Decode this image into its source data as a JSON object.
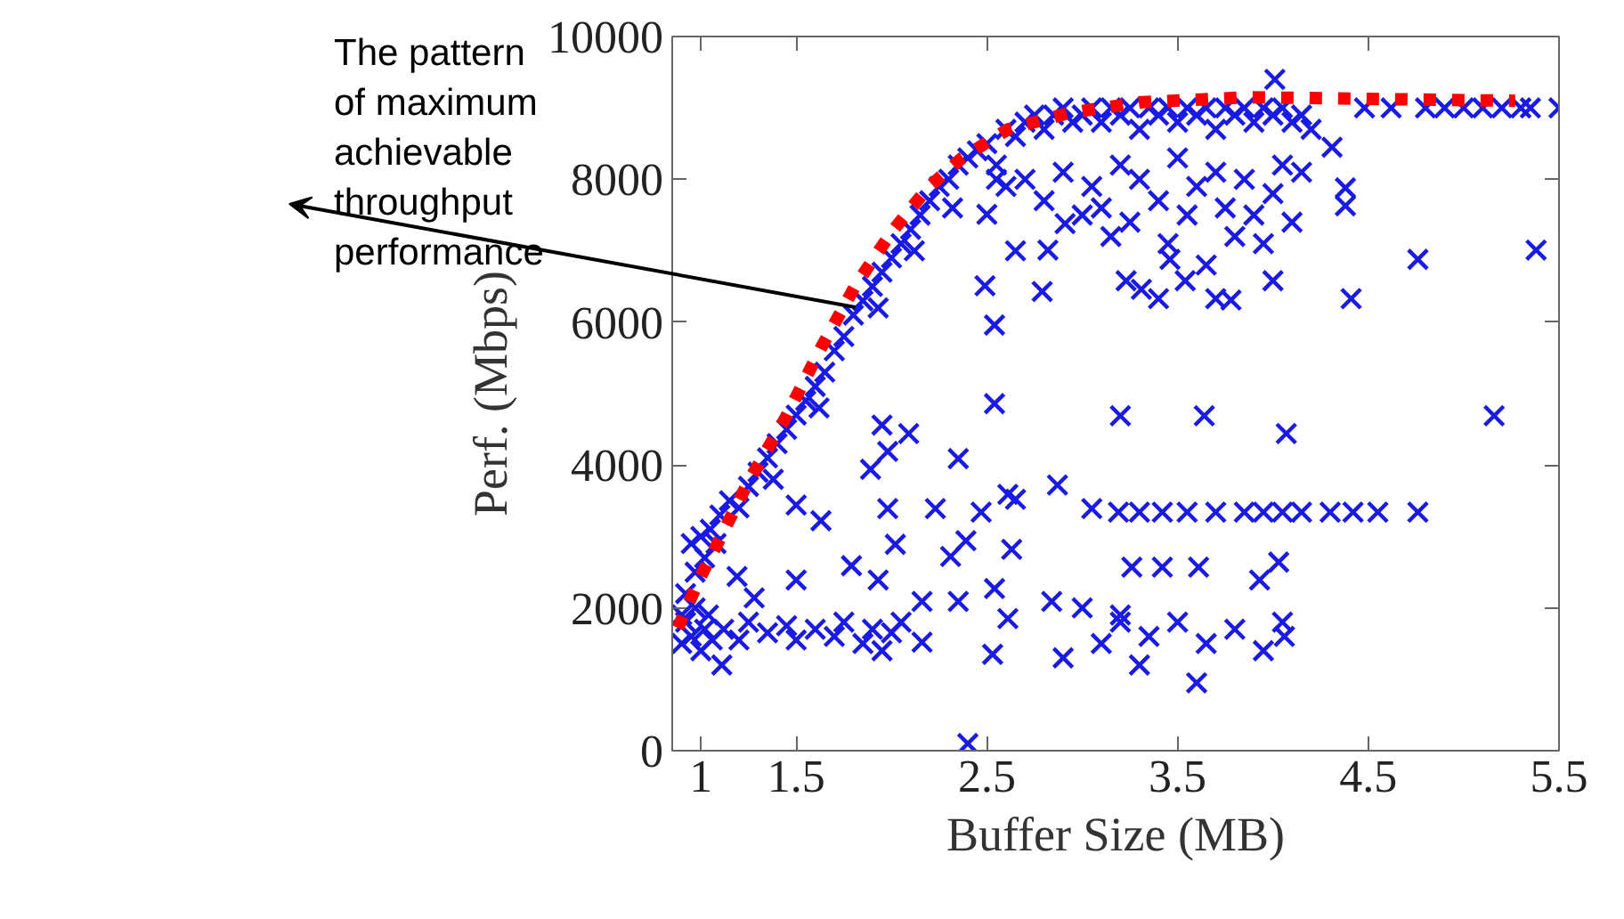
{
  "chart_data": {
    "type": "scatter",
    "xlabel": "Buffer Size (MB)",
    "ylabel": "Perf. (Mbps)",
    "xlim": [
      0.85,
      5.5
    ],
    "ylim": [
      0,
      10000
    ],
    "xticks": [
      1,
      1.5,
      2.5,
      3.5,
      4.5,
      5.5
    ],
    "yticks": [
      0,
      2000,
      4000,
      6000,
      8000,
      10000
    ],
    "grid": false,
    "annotations": [
      {
        "text": "The pattern\nof maximum\nachievable\nthroughput\nperformance",
        "x": 1.81,
        "y": 6210
      }
    ],
    "series": [
      {
        "color": "#1a1ae6",
        "marker": "cross",
        "x": [
          0.9,
          0.92,
          0.95,
          0.97,
          1.0,
          1.02,
          1.05,
          1.08,
          1.1,
          1.15,
          1.2,
          1.25,
          1.3,
          1.35,
          1.38,
          1.4,
          1.45,
          1.5,
          1.55,
          1.6,
          1.62,
          1.65,
          1.7,
          1.75,
          1.8,
          1.85,
          1.9,
          1.93,
          1.95,
          2.0,
          2.05,
          2.1,
          2.12,
          2.15,
          2.2,
          2.25,
          2.3,
          2.32,
          2.35,
          2.4,
          2.45,
          2.5,
          2.55,
          2.6,
          2.65,
          2.7,
          2.75,
          2.8,
          2.85,
          2.9,
          2.95,
          3.0,
          3.05,
          3.1,
          3.15,
          3.2,
          3.25,
          3.3,
          3.35,
          3.4,
          3.45,
          3.5,
          3.55,
          3.6,
          3.65,
          3.7,
          3.75,
          3.8,
          3.85,
          3.9,
          3.95,
          4.0,
          4.05,
          4.1,
          4.15,
          4.2,
          2.7,
          2.8,
          2.9,
          3.0,
          3.05,
          3.1,
          3.2,
          3.25,
          3.3,
          3.4,
          3.5,
          3.55,
          3.6,
          3.7,
          3.75,
          3.8,
          3.85,
          3.9,
          4.0,
          4.05,
          4.1,
          4.15,
          2.6,
          2.55,
          2.65,
          3.15,
          3.45,
          3.95,
          3.65,
          4.48,
          4.62,
          4.8,
          4.9,
          5.0,
          5.1,
          5.2,
          5.3,
          5.35,
          5.5,
          4.01,
          4.31,
          4.38,
          4.38,
          4.76,
          5.38,
          3.46,
          4.0,
          4.41,
          3.78,
          3.23,
          3.4,
          3.54,
          3.7,
          2.49,
          2.54,
          2.79,
          2.82,
          3.31,
          2.91,
          2.5,
          1.5,
          1.63,
          1.98,
          2.02,
          2.23,
          2.31,
          2.39,
          2.47,
          2.61,
          2.65,
          2.87,
          3.05,
          2.63,
          1.95,
          2.09,
          1.98,
          1.89,
          2.35,
          2.54,
          1.79,
          1.93,
          1.5,
          1.19,
          1.28,
          2.16,
          2.35,
          2.54,
          2.61,
          2.53,
          2.4,
          2.16,
          1.11,
          2.84,
          3.2,
          3.64,
          4.07,
          5.16,
          3.19,
          3.3,
          3.42,
          3.55,
          3.7,
          3.85,
          3.95,
          4.05,
          4.15,
          4.3,
          4.42,
          4.55,
          4.76,
          3.26,
          3.42,
          3.61,
          4.03,
          3.93,
          3.2,
          3.35,
          3.5,
          3.65,
          3.8,
          3.95,
          4.05,
          3.3,
          3.6,
          4.06,
          2.9,
          3.0,
          3.1,
          3.2,
          0.9,
          0.92,
          0.95,
          0.97,
          1.0,
          1.02,
          1.04,
          1.06,
          1.12,
          1.2,
          1.25,
          1.35,
          1.45,
          1.5,
          1.6,
          1.7,
          1.75,
          1.85,
          1.9,
          1.95,
          2.0,
          2.05
        ],
        "values": [
          1900,
          2200,
          2900,
          2500,
          3000,
          2700,
          3100,
          2900,
          3300,
          3500,
          3400,
          3700,
          3900,
          4100,
          3800,
          4300,
          4500,
          4700,
          4900,
          5100,
          4800,
          5300,
          5600,
          5800,
          6100,
          6300,
          6500,
          6200,
          6700,
          6900,
          7100,
          7300,
          7000,
          7500,
          7700,
          7900,
          8000,
          7600,
          8200,
          8300,
          8400,
          8500,
          8200,
          8700,
          8600,
          8800,
          8900,
          8700,
          8900,
          9000,
          8800,
          8900,
          9000,
          8800,
          9000,
          8900,
          9000,
          8700,
          9000,
          8900,
          9000,
          8800,
          9000,
          8900,
          9000,
          8700,
          9000,
          8900,
          9000,
          8800,
          9000,
          8900,
          9000,
          8800,
          8900,
          8700,
          8000,
          7700,
          8100,
          7500,
          7900,
          7600,
          8200,
          7400,
          8000,
          7700,
          8300,
          7500,
          7900,
          8100,
          7600,
          7200,
          8000,
          7500,
          7800,
          8200,
          7400,
          8100,
          7900,
          8000,
          7000,
          7200,
          7100,
          7100,
          6800,
          9000,
          9000,
          9000,
          9000,
          9000,
          9000,
          9000,
          9000,
          9000,
          9000,
          9400,
          8450,
          7880,
          7630,
          6880,
          7010,
          6880,
          6580,
          6330,
          6310,
          6580,
          6330,
          6580,
          6330,
          6510,
          5960,
          6430,
          7010,
          6460,
          7380,
          7510,
          3440,
          3220,
          3390,
          2890,
          3390,
          2720,
          2940,
          3340,
          3590,
          3520,
          3720,
          3390,
          2820,
          4560,
          4440,
          4190,
          3940,
          4090,
          4860,
          2590,
          2390,
          2390,
          2440,
          2140,
          2090,
          2090,
          2270,
          1850,
          1350,
          100,
          1520,
          1200,
          2090,
          4690,
          4690,
          4440,
          4690,
          3340,
          3340,
          3340,
          3340,
          3340,
          3340,
          3340,
          3340,
          3340,
          3340,
          3340,
          3340,
          3340,
          2570,
          2570,
          2570,
          2640,
          2390,
          1900,
          1600,
          1800,
          1500,
          1700,
          1400,
          1800,
          1200,
          950,
          1600,
          1300,
          2000,
          1500,
          1800,
          1500,
          1800,
          1600,
          2000,
          1400,
          1700,
          1900,
          1550,
          1700,
          1550,
          1800,
          1650,
          1750,
          1550,
          1700,
          1600,
          1800,
          1500,
          1700,
          1400,
          1650,
          1800
        ]
      },
      {
        "type": "line",
        "color": "#ff0000",
        "line_style": "dotted",
        "x": [
          0.88,
          0.99,
          1.11,
          1.25,
          1.44,
          1.63,
          1.81,
          2.0,
          2.19,
          2.37,
          2.61,
          2.93,
          3.31,
          3.87,
          4.43,
          5.27
        ],
        "values": [
          1720,
          2390,
          3020,
          3770,
          4640,
          5640,
          6510,
          7260,
          7880,
          8300,
          8700,
          8930,
          9080,
          9150,
          9130,
          9100
        ]
      }
    ]
  }
}
